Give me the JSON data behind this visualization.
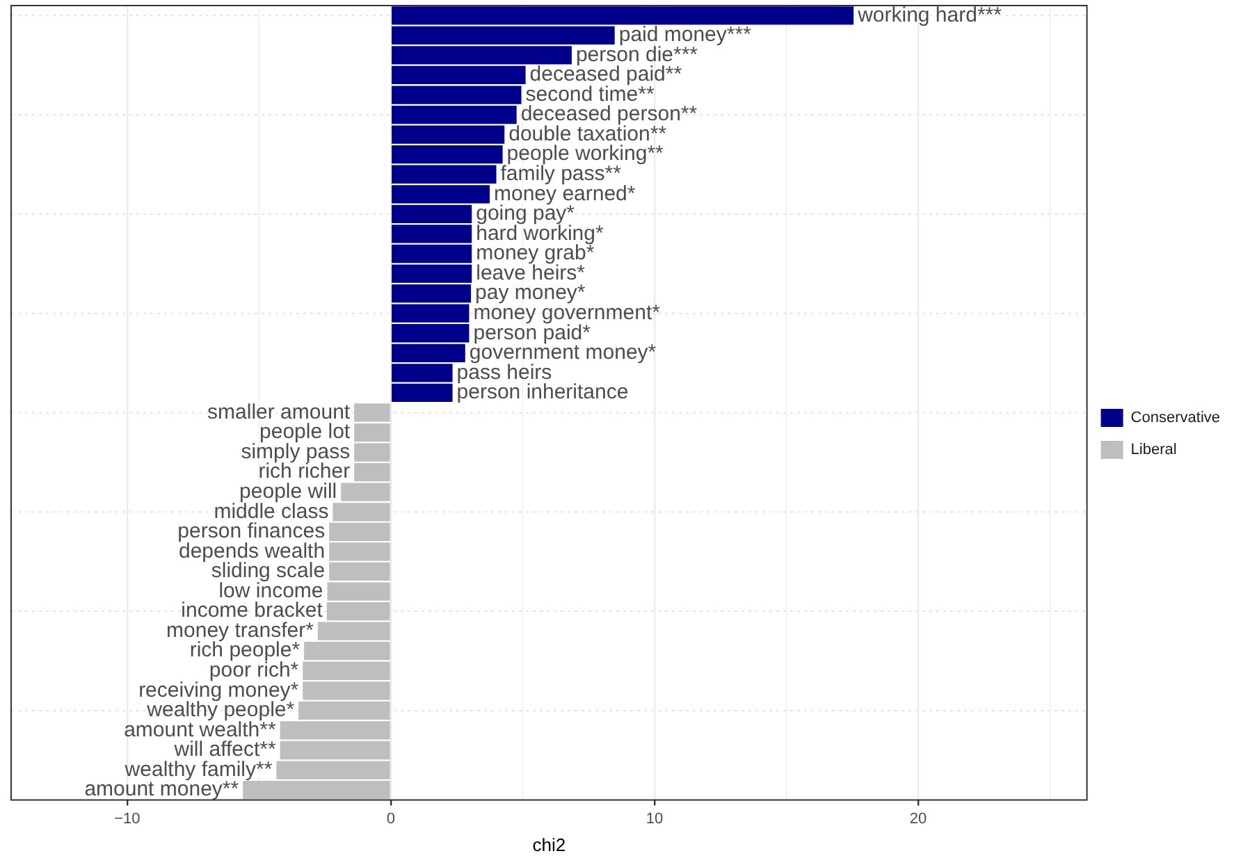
{
  "chart_data": {
    "type": "bar",
    "orientation": "horizontal",
    "xlabel": "chi2",
    "categories": [
      "working hard***",
      "paid money***",
      "person die***",
      "deceased paid**",
      "second time**",
      "deceased person**",
      "double taxation**",
      "people working**",
      "family pass**",
      "money earned*",
      "going pay*",
      "hard working*",
      "money grab*",
      "leave heirs*",
      "pay money*",
      "money government*",
      "person paid*",
      "government money*",
      "pass heirs",
      "person inheritance",
      "smaller amount",
      "people lot",
      "simply pass",
      "rich richer",
      "people will",
      "middle class",
      "person finances",
      "depends wealth",
      "sliding scale",
      "low income",
      "income bracket",
      "money transfer*",
      "rich people*",
      "poor rich*",
      "receiving money*",
      "wealthy people*",
      "amount wealth**",
      "will affect**",
      "wealthy family**",
      "amount money**"
    ],
    "series": [
      {
        "name": "Conservative",
        "color": "#00008b",
        "values": [
          17.55,
          8.49,
          6.86,
          5.11,
          4.95,
          4.77,
          4.31,
          4.24,
          4.0,
          3.75,
          3.07,
          3.07,
          3.07,
          3.07,
          3.04,
          2.97,
          2.97,
          2.82,
          2.34,
          2.34,
          null,
          null,
          null,
          null,
          null,
          null,
          null,
          null,
          null,
          null,
          null,
          null,
          null,
          null,
          null,
          null,
          null,
          null,
          null,
          null
        ]
      },
      {
        "name": "Liberal",
        "color": "#bebebe",
        "values": [
          null,
          null,
          null,
          null,
          null,
          null,
          null,
          null,
          null,
          null,
          null,
          null,
          null,
          null,
          null,
          null,
          null,
          null,
          null,
          null,
          -1.39,
          -1.39,
          -1.39,
          -1.39,
          -1.89,
          -2.2,
          -2.34,
          -2.34,
          -2.34,
          -2.41,
          -2.43,
          -2.77,
          -3.29,
          -3.34,
          -3.34,
          -3.5,
          -4.2,
          -4.2,
          -4.34,
          -5.61
        ]
      }
    ],
    "xlim": [
      -14.4,
      26.4
    ],
    "xticks": [
      {
        "value": -10,
        "label": "−10"
      },
      0,
      10,
      20
    ],
    "grid": true,
    "legend": "right",
    "tick_labels": "x"
  }
}
